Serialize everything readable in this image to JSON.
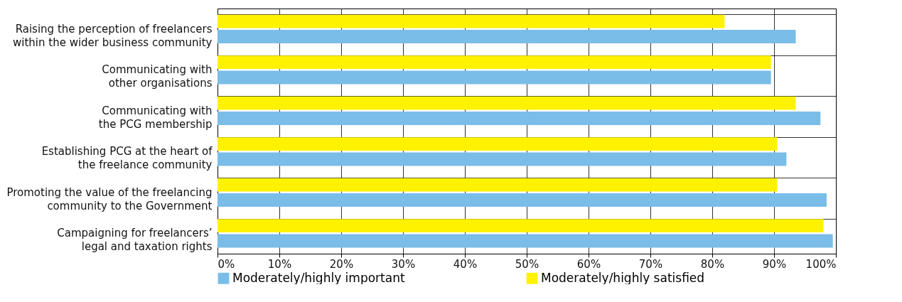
{
  "chart_data": {
    "type": "bar",
    "orientation": "horizontal",
    "categories": [
      "Raising the perception of freelancers\nwithin the wider business community",
      "Communicating with\nother organisations",
      "Communicating with\nthe PCG membership",
      "Establishing PCG at the heart of\nthe freelance community",
      "Promoting the value of the freelancing\ncommunity to the Government",
      "Campaigning for freelancers’\nlegal and taxation rights"
    ],
    "series": [
      {
        "name": "Moderately/highly important",
        "color": "#79bde8",
        "values": [
          93.5,
          89.5,
          97.5,
          92,
          98.5,
          99.5
        ]
      },
      {
        "name": "Moderately/highly satisfied",
        "color": "#fff200",
        "values": [
          82,
          89.5,
          93.5,
          90.5,
          90.5,
          98
        ]
      }
    ],
    "xlim": [
      0,
      100
    ],
    "xticks": [
      {
        "value": 0,
        "label": "0%"
      },
      {
        "value": 10,
        "label": "10%"
      },
      {
        "value": 20,
        "label": "20%"
      },
      {
        "value": 30,
        "label": "30%"
      },
      {
        "value": 40,
        "label": "40%"
      },
      {
        "value": 50,
        "label": "50%"
      },
      {
        "value": 60,
        "label": "60%"
      },
      {
        "value": 70,
        "label": "70%"
      },
      {
        "value": 80,
        "label": "80%"
      },
      {
        "value": 90,
        "label": "90%"
      },
      {
        "value": 100,
        "label": "100%"
      }
    ],
    "grid": true,
    "legend": "bottom"
  }
}
